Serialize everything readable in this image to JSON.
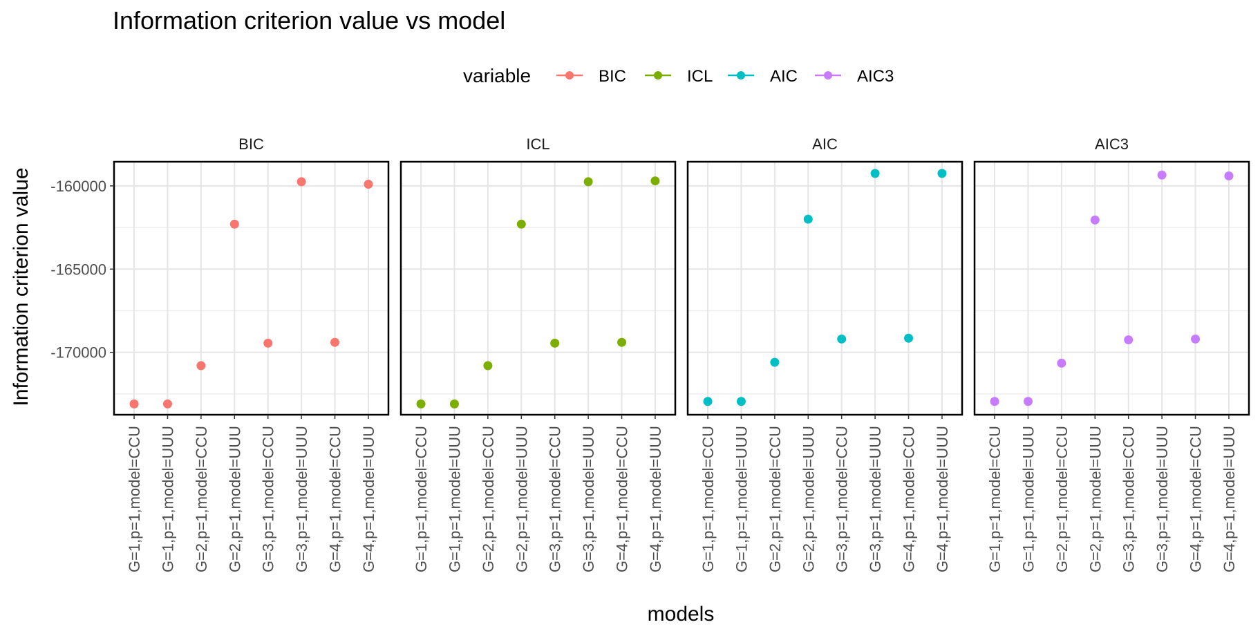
{
  "chart_data": {
    "type": "scatter",
    "title": "Information criterion value vs model",
    "xlabel": "models",
    "ylabel": "Information criterion value",
    "legend": {
      "title": "variable",
      "position": "top"
    },
    "categories": [
      "G=1,p=1,model=CCU",
      "G=1,p=1,model=UUU",
      "G=2,p=1,model=CCU",
      "G=2,p=1,model=UUU",
      "G=3,p=1,model=CCU",
      "G=3,p=1,model=UUU",
      "G=4,p=1,model=CCU",
      "G=4,p=1,model=UUU"
    ],
    "y_ticks": [
      -160000,
      -165000,
      -170000
    ],
    "y_tick_labels": [
      "-160000",
      "-165000",
      "-170000"
    ],
    "ylim": [
      -173750,
      -158550
    ],
    "grid": true,
    "series": [
      {
        "name": "BIC",
        "color": "#F8766D",
        "values": [
          -173100,
          -173100,
          -170800,
          -162300,
          -169450,
          -159750,
          -169400,
          -159900
        ]
      },
      {
        "name": "ICL",
        "color": "#7CAE00",
        "values": [
          -173100,
          -173100,
          -170800,
          -162300,
          -169450,
          -159750,
          -169400,
          -159700
        ]
      },
      {
        "name": "AIC",
        "color": "#00BFC4",
        "values": [
          -172950,
          -172950,
          -170600,
          -162000,
          -169200,
          -159250,
          -169150,
          -159250
        ]
      },
      {
        "name": "AIC3",
        "color": "#C77CFF",
        "values": [
          -172950,
          -172950,
          -170650,
          -162050,
          -169250,
          -159350,
          -169200,
          -159400
        ]
      }
    ]
  }
}
